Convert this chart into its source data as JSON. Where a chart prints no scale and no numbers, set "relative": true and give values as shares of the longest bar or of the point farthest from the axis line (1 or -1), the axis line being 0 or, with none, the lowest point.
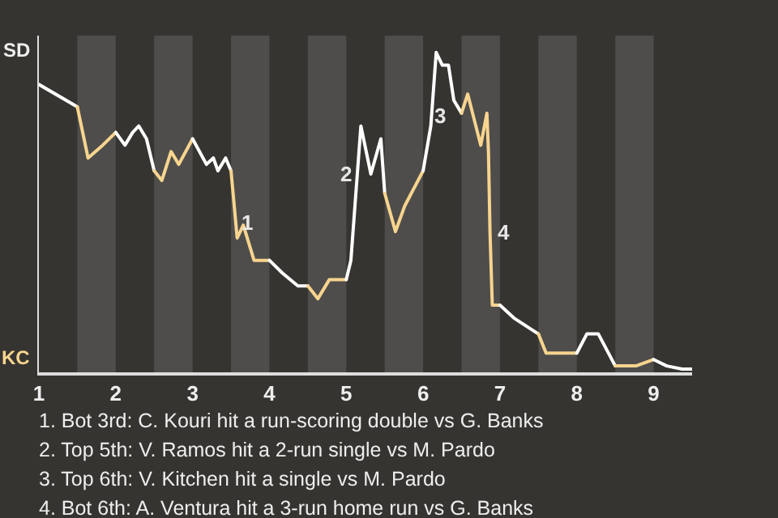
{
  "chart_data": {
    "type": "line",
    "relative": true,
    "xlim": [
      1,
      9.5
    ],
    "xticks": [
      1,
      2,
      3,
      4,
      5,
      6,
      7,
      8,
      9
    ],
    "marker": "none",
    "line_style": "solid",
    "series": [
      {
        "color": "#ffffff",
        "x": [
          1,
          1.5
        ],
        "values": [
          0.9,
          0.83
        ]
      },
      {
        "color": "#f7d48f",
        "x": [
          1.5,
          1.64,
          1.83,
          2
        ],
        "values": [
          0.83,
          0.67,
          0.71,
          0.75
        ]
      },
      {
        "color": "#ffffff",
        "x": [
          2,
          2.12,
          2.22,
          2.3,
          2.4,
          2.5
        ],
        "values": [
          0.75,
          0.71,
          0.75,
          0.77,
          0.73,
          0.63
        ]
      },
      {
        "color": "#f7d48f",
        "x": [
          2.5,
          2.6,
          2.72,
          2.82,
          3
        ],
        "values": [
          0.63,
          0.6,
          0.69,
          0.65,
          0.73
        ]
      },
      {
        "color": "#ffffff",
        "x": [
          3,
          3.18,
          3.27,
          3.33,
          3.43,
          3.5
        ],
        "values": [
          0.73,
          0.65,
          0.67,
          0.63,
          0.67,
          0.63
        ]
      },
      {
        "color": "#f7d48f",
        "x": [
          3.5,
          3.58,
          3.66,
          3.8,
          3.96,
          4
        ],
        "values": [
          0.63,
          0.42,
          0.46,
          0.35,
          0.35,
          0.35
        ]
      },
      {
        "color": "#ffffff",
        "x": [
          4,
          4.17,
          4.37,
          4.5
        ],
        "values": [
          0.35,
          0.31,
          0.27,
          0.27
        ]
      },
      {
        "color": "#f7d48f",
        "x": [
          4.5,
          4.63,
          4.78,
          5
        ],
        "values": [
          0.27,
          0.23,
          0.29,
          0.29
        ]
      },
      {
        "color": "#ffffff",
        "x": [
          5,
          5.06,
          5.19,
          5.32,
          5.45,
          5.5
        ],
        "values": [
          0.29,
          0.35,
          0.77,
          0.62,
          0.73,
          0.56
        ]
      },
      {
        "color": "#f7d48f",
        "x": [
          5.5,
          5.64,
          5.76,
          6
        ],
        "values": [
          0.56,
          0.44,
          0.52,
          0.63
        ]
      },
      {
        "color": "#ffffff",
        "x": [
          6,
          6.1,
          6.17,
          6.25,
          6.33,
          6.4,
          6.5
        ],
        "values": [
          0.63,
          0.77,
          1,
          0.96,
          0.96,
          0.85,
          0.81
        ]
      },
      {
        "color": "#f7d48f",
        "x": [
          6.5,
          6.58,
          6.75,
          6.83,
          6.85,
          6.87,
          6.9,
          7
        ],
        "values": [
          0.81,
          0.87,
          0.71,
          0.81,
          0.69,
          0.44,
          0.21,
          0.21
        ]
      },
      {
        "color": "#ffffff",
        "x": [
          7,
          7.18,
          7.5
        ],
        "values": [
          0.21,
          0.17,
          0.12
        ]
      },
      {
        "color": "#f7d48f",
        "x": [
          7.5,
          7.6,
          7.68,
          8
        ],
        "values": [
          0.12,
          0.06,
          0.06,
          0.06
        ]
      },
      {
        "color": "#ffffff",
        "x": [
          8,
          8.13,
          8.28,
          8.5
        ],
        "values": [
          0.06,
          0.12,
          0.12,
          0.02
        ]
      },
      {
        "color": "#f7d48f",
        "x": [
          8.5,
          8.68,
          8.77,
          9
        ],
        "values": [
          0.02,
          0.02,
          0.02,
          0.04
        ]
      },
      {
        "color": "#ffffff",
        "x": [
          9,
          9.17,
          9.37,
          9.5
        ],
        "values": [
          0.04,
          0.02,
          0.01,
          0.01
        ]
      }
    ],
    "bands": [
      {
        "axis": "x",
        "from": 1.5,
        "to": 2,
        "color": "#4e4d4b"
      },
      {
        "axis": "x",
        "from": 2.5,
        "to": 3,
        "color": "#4e4d4b"
      },
      {
        "axis": "x",
        "from": 3.5,
        "to": 4,
        "color": "#4e4d4b"
      },
      {
        "axis": "x",
        "from": 4.5,
        "to": 5,
        "color": "#4e4d4b"
      },
      {
        "axis": "x",
        "from": 5.5,
        "to": 6,
        "color": "#4e4d4b"
      },
      {
        "axis": "x",
        "from": 6.5,
        "to": 7,
        "color": "#4e4d4b"
      },
      {
        "axis": "x",
        "from": 7.5,
        "to": 8,
        "color": "#4e4d4b"
      },
      {
        "axis": "x",
        "from": 8.5,
        "to": 9,
        "color": "#4e4d4b"
      }
    ],
    "annotations": [
      "SD",
      "KC",
      {
        "text": "1",
        "x": 3.7,
        "y": 0.47
      },
      {
        "text": "2",
        "x": 5.0,
        "y": 0.62
      },
      {
        "text": "3",
        "x": 6.23,
        "y": 0.8
      },
      {
        "text": "4",
        "x": 7.06,
        "y": 0.44
      },
      "1. Bot 3rd: C. Kouri hit a run-scoring double vs G. Banks",
      "2. Top 5th: V. Ramos hit a 2-run single vs M. Pardo",
      "3. Top 6th: V. Kitchen hit a single vs M. Pardo",
      "4. Bot 6th: A. Ventura hit a 3-run home run vs G. Banks"
    ]
  }
}
